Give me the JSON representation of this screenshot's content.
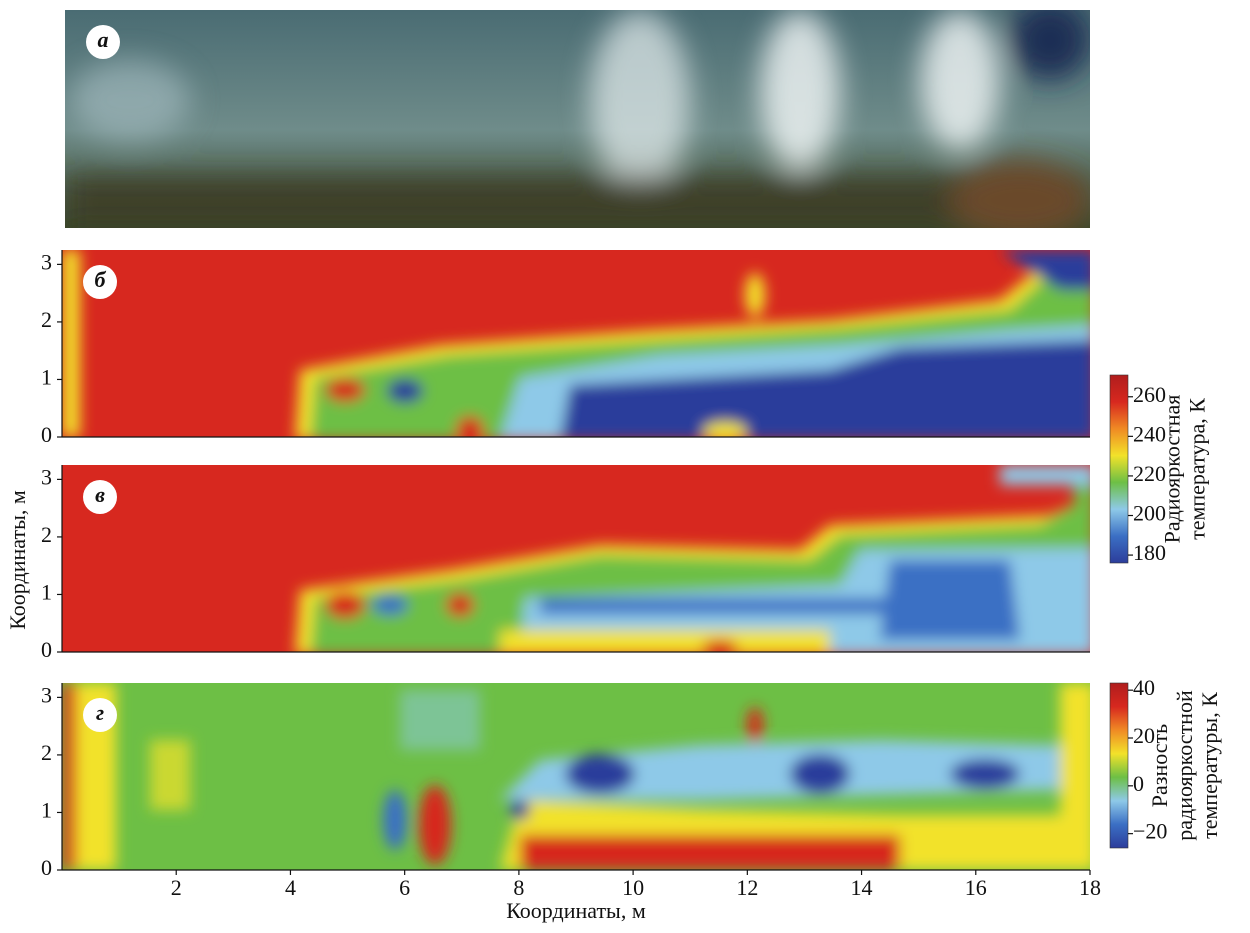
{
  "chart_data": [
    {
      "type": "image",
      "label": "а"
    },
    {
      "type": "heatmap",
      "label": "б",
      "xlim": [
        0,
        18
      ],
      "ylim": [
        0,
        3.25
      ],
      "yticks": [
        0,
        1,
        2,
        3
      ],
      "colorbar": {
        "label": [
          "Радиояркостная",
          "температура, К"
        ],
        "clim": [
          176,
          271
        ],
        "ticks": [
          180,
          200,
          220,
          240,
          260
        ],
        "colors": [
          "#2c3d9b",
          "#3b6fc4",
          "#8ec9e8",
          "#6dbf45",
          "#f2e22a",
          "#f08a24",
          "#d7281f",
          "#b01d1d"
        ]
      }
    },
    {
      "type": "heatmap",
      "label": "в",
      "xlim": [
        0,
        18
      ],
      "ylim": [
        0,
        3.25
      ],
      "yticks": [
        0,
        1,
        2,
        3
      ]
    },
    {
      "type": "heatmap",
      "label": "г",
      "xlim": [
        0,
        18
      ],
      "ylim": [
        0,
        3.25
      ],
      "yticks": [
        0,
        1,
        2,
        3
      ],
      "xticks": [
        2,
        4,
        6,
        8,
        10,
        12,
        14,
        16,
        18
      ],
      "xlabel": "Координаты, м",
      "colorbar": {
        "label": [
          "Разность",
          "радиояркостной",
          "температуры, К"
        ],
        "clim": [
          -26,
          43
        ],
        "ticks": [
          {
            "value": -20,
            "label": "−20"
          },
          0,
          20,
          40
        ],
        "colors": [
          "#2c3d9b",
          "#3b6fc4",
          "#8ec9e8",
          "#6dbf45",
          "#f2e22a",
          "#f08a24",
          "#d7281f",
          "#b01d1d"
        ]
      }
    }
  ],
  "ylabel": "Координаты, м"
}
